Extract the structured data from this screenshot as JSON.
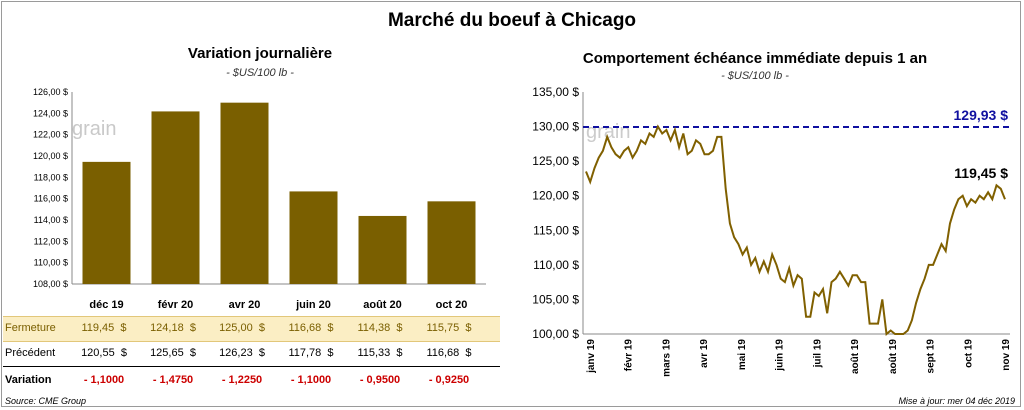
{
  "main_title": "Marché du boeuf à Chicago",
  "left_title": "Variation journalière",
  "left_subtitle": "- $US/100 lb -",
  "right_title": "Comportement  échéance immédiate depuis 1 an",
  "right_subtitle": "- $US/100 lb -",
  "watermark": "grain",
  "source": "Source: CME Group",
  "updated": "Mise à jour: mer 04 déc 2019",
  "table": {
    "rows": [
      {
        "label": "Fermeture",
        "values": [
          "119,45  $",
          "124,18  $",
          "125,00  $",
          "116,68  $",
          "114,38  $",
          "115,75  $"
        ]
      },
      {
        "label": "Précédent",
        "values": [
          "120,55  $",
          "125,65  $",
          "126,23  $",
          "117,78  $",
          "115,33  $",
          "116,68  $"
        ]
      },
      {
        "label": "Variation",
        "values": [
          "- 1,1000",
          "- 1,4750",
          "- 1,2250",
          "- 1,1000",
          "- 0,9500",
          "- 0,9250"
        ]
      }
    ]
  },
  "colors": {
    "bar": "#7a5f00",
    "line": "#806000",
    "ref": "#1010a0",
    "neg": "#cc0000",
    "highlight": "#fbeec4"
  },
  "chart_data": [
    {
      "type": "bar",
      "categories": [
        "déc 19",
        "févr 20",
        "avr 20",
        "juin 20",
        "août 20",
        "oct 20"
      ],
      "values": [
        119.45,
        124.18,
        125.0,
        116.68,
        114.38,
        115.75
      ],
      "ylim": [
        108,
        126
      ],
      "yticks": [
        "108,00 $",
        "110,00 $",
        "112,00 $",
        "114,00 $",
        "116,00 $",
        "118,00 $",
        "120,00 $",
        "122,00 $",
        "124,00 $",
        "126,00 $"
      ],
      "grid": false
    },
    {
      "type": "line",
      "ylim": [
        100,
        135
      ],
      "yticks": [
        "100,00 $",
        "105,00 $",
        "110,00 $",
        "115,00 $",
        "120,00 $",
        "125,00 $",
        "130,00 $",
        "135,00 $"
      ],
      "xticks": [
        "janv 19",
        "févr 19",
        "mars 19",
        "avr 19",
        "mai 19",
        "juin 19",
        "juil 19",
        "août 19",
        "août 19",
        "sept 19",
        "oct 19",
        "nov 19"
      ],
      "reference_line": {
        "value": 129.93,
        "label": "129,93 $"
      },
      "last_label": "119,45 $",
      "series": [
        {
          "values": [
            123.5,
            122,
            124,
            125.5,
            126.5,
            128.5,
            127,
            126,
            125.5,
            126.5,
            127,
            125.5,
            126.5,
            128,
            127.5,
            129,
            128.5,
            130,
            129,
            129.5,
            128,
            129.5,
            127,
            129,
            126,
            126.5,
            128,
            127.5,
            126,
            126,
            126.5,
            128.5,
            128.5,
            121,
            116,
            114,
            113,
            111.5,
            112.5,
            110,
            111,
            109,
            110.5,
            109,
            111.5,
            110,
            108,
            107.5,
            109.5,
            107,
            108.5,
            108,
            102.5,
            102.5,
            106,
            105.5,
            106.5,
            103,
            107.5,
            108,
            109,
            108,
            107,
            108.5,
            108.5,
            107.5,
            107.5,
            101.5,
            101.5,
            101.5,
            105,
            100,
            100.5,
            100,
            100,
            100,
            100.5,
            102,
            104.5,
            106.5,
            108,
            110,
            110,
            111.5,
            113,
            112,
            116,
            118,
            119.5,
            120,
            118.5,
            119.5,
            119,
            120,
            119.5,
            120.5,
            119.5,
            121.5,
            121,
            119.5
          ]
        }
      ]
    }
  ]
}
